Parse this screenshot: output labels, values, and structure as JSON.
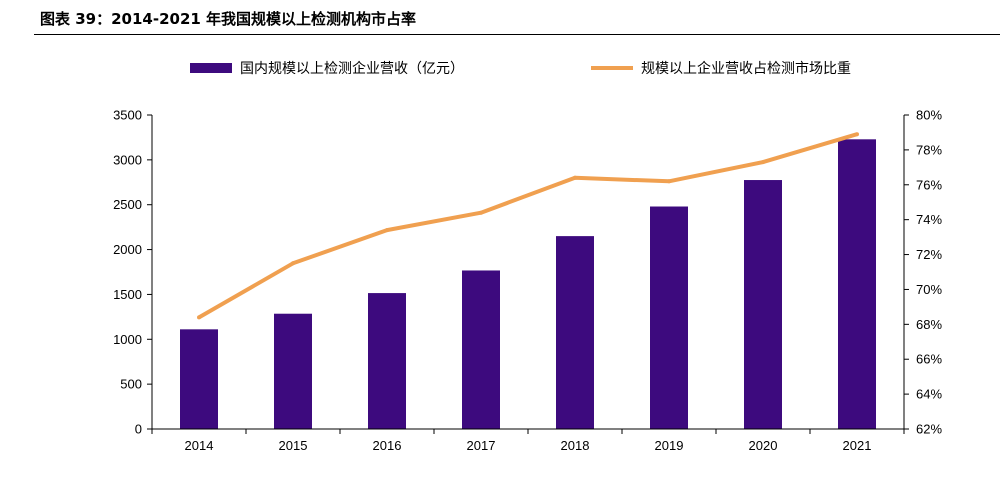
{
  "figure": {
    "title": "图表 39：2014-2021 年我国规模以上检测机构市占率"
  },
  "chart_data": {
    "type": "bar",
    "categories": [
      "2014",
      "2015",
      "2016",
      "2017",
      "2018",
      "2019",
      "2020",
      "2021"
    ],
    "series": [
      {
        "name": "国内规模以上检测企业营收（亿元）",
        "type": "bar",
        "axis": "left",
        "color": "#3D0A7E",
        "values": [
          1111,
          1285,
          1515,
          1767,
          2150,
          2480,
          2775,
          3229
        ]
      },
      {
        "name": "规模以上企业营收占检测市场比重",
        "type": "line",
        "axis": "right",
        "color": "#F0A050",
        "values": [
          68.4,
          71.5,
          73.4,
          74.4,
          76.4,
          76.2,
          77.3,
          78.9
        ]
      }
    ],
    "y_left": {
      "min": 0,
      "max": 3500,
      "step": 500
    },
    "y_right": {
      "min": 62,
      "max": 80,
      "step": 2,
      "unit": "%"
    },
    "legend_position": "top"
  }
}
